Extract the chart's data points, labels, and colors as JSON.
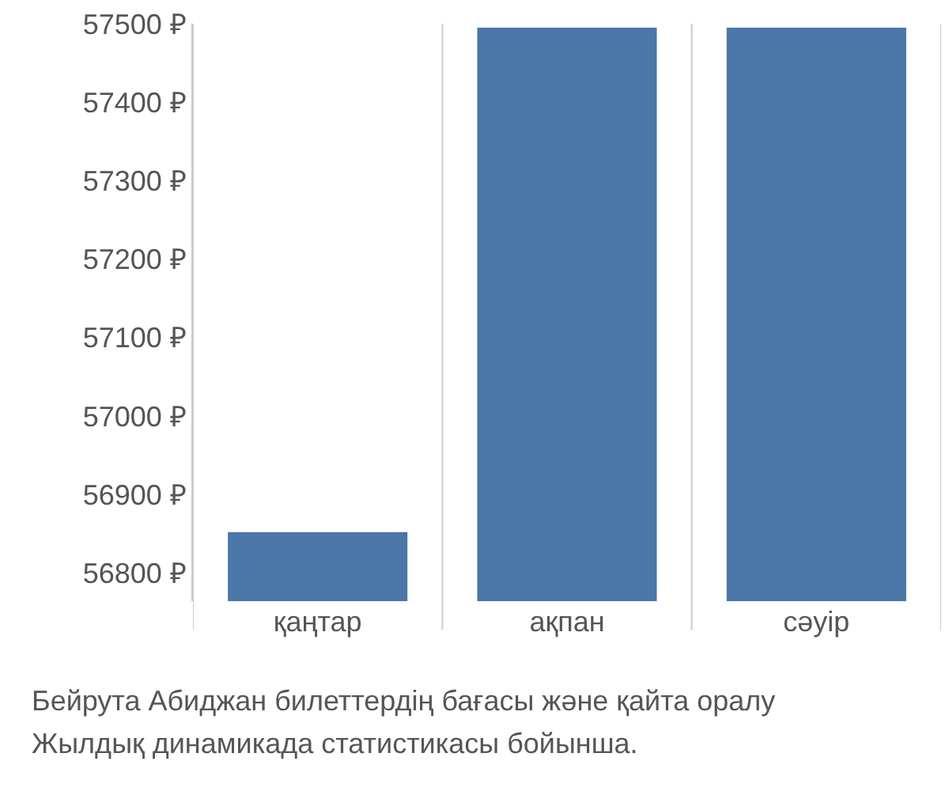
{
  "chart_data": {
    "type": "bar",
    "categories": [
      "қаңтар",
      "ақпан",
      "сәуір"
    ],
    "values": [
      56852,
      57495,
      57495
    ],
    "color": "#4a76a8",
    "ylim": [
      56764,
      57500
    ],
    "yticks": [
      {
        "value": 56800,
        "label": "56800 ₽"
      },
      {
        "value": 56900,
        "label": "56900 ₽"
      },
      {
        "value": 57000,
        "label": "57000 ₽"
      },
      {
        "value": 57100,
        "label": "57100 ₽"
      },
      {
        "value": 57200,
        "label": "57200 ₽"
      },
      {
        "value": 57300,
        "label": "57300 ₽"
      },
      {
        "value": 57400,
        "label": "57400 ₽"
      },
      {
        "value": 57500,
        "label": "57500 ₽"
      }
    ],
    "grid": "x",
    "annotations": [
      "Бейрута Абиджан билеттердің бағасы және қайта оралу",
      "Жылдық динамикада статистикасы бойынша."
    ]
  }
}
